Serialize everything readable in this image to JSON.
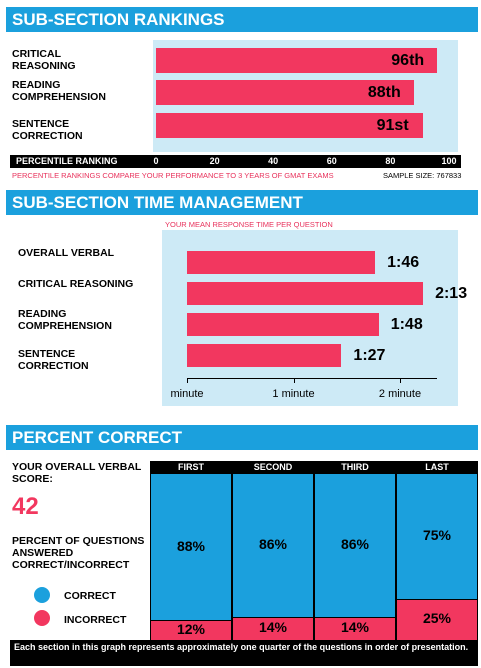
{
  "rankings": {
    "title": "SUB-SECTION RANKINGS",
    "axis_label": "PERCENTILE RANKING",
    "footnote": "PERCENTILE RANKINGS COMPARE YOUR PERFORMANCE TO 3 YEARS OF GMAT EXAMS",
    "sample_size": "SAMPLE SIZE: 767833"
  },
  "time": {
    "title": "SUB-SECTION TIME MANAGEMENT",
    "subtitle": "YOUR MEAN RESPONSE TIME PER QUESTION"
  },
  "percent": {
    "title": "PERCENT CORRECT",
    "overall_label": "YOUR OVERALL VERBAL SCORE:",
    "overall_score": "42",
    "questions_label": "PERCENT OF QUESTIONS ANSWERED CORRECT/INCORRECT",
    "legend_correct": "CORRECT",
    "legend_incorrect": "INCORRECT",
    "footnote": "Each section in this graph represents approximately one quarter of the questions in order of presentation."
  },
  "colors": {
    "blue": "#1ba0dd",
    "pink": "#f2375f",
    "light_blue": "#cdeaf6"
  },
  "chart_data": [
    {
      "type": "bar",
      "orientation": "horizontal",
      "title": "SUB-SECTION RANKINGS",
      "xlabel": "PERCENTILE RANKING",
      "categories": [
        "CRITICAL REASONING",
        "READING COMPREHENSION",
        "SENTENCE CORRECTION"
      ],
      "values": [
        96,
        88,
        91
      ],
      "value_labels": [
        "96th",
        "88th",
        "91st"
      ],
      "xlim": [
        0,
        100
      ],
      "ticks": [
        "0",
        "20",
        "40",
        "60",
        "80",
        "100"
      ]
    },
    {
      "type": "bar",
      "orientation": "horizontal",
      "title": "SUB-SECTION TIME MANAGEMENT",
      "subtitle": "YOUR MEAN RESPONSE TIME PER QUESTION",
      "categories": [
        "OVERALL VERBAL",
        "CRITICAL REASONING",
        "READING COMPREHENSION",
        "SENTENCE CORRECTION"
      ],
      "values": [
        106,
        133,
        108,
        87
      ],
      "value_labels": [
        "1:46",
        "2:13",
        "1:48",
        "1:27"
      ],
      "xlim": [
        0,
        150
      ],
      "ticks": [
        {
          "value": 0,
          "label": "minute"
        },
        {
          "value": 60,
          "label": "1 minute"
        },
        {
          "value": 120,
          "label": "2 minute"
        }
      ]
    },
    {
      "type": "bar",
      "stacked": true,
      "title": "PERCENT CORRECT",
      "categories": [
        "FIRST",
        "SECOND",
        "THIRD",
        "LAST"
      ],
      "series": [
        {
          "name": "CORRECT",
          "values": [
            88,
            86,
            86,
            75
          ],
          "labels": [
            "88%",
            "86%",
            "86%",
            "75%"
          ]
        },
        {
          "name": "INCORRECT",
          "values": [
            12,
            14,
            14,
            25
          ],
          "labels": [
            "12%",
            "14%",
            "14%",
            "25%"
          ]
        }
      ],
      "ylim": [
        0,
        100
      ]
    }
  ]
}
